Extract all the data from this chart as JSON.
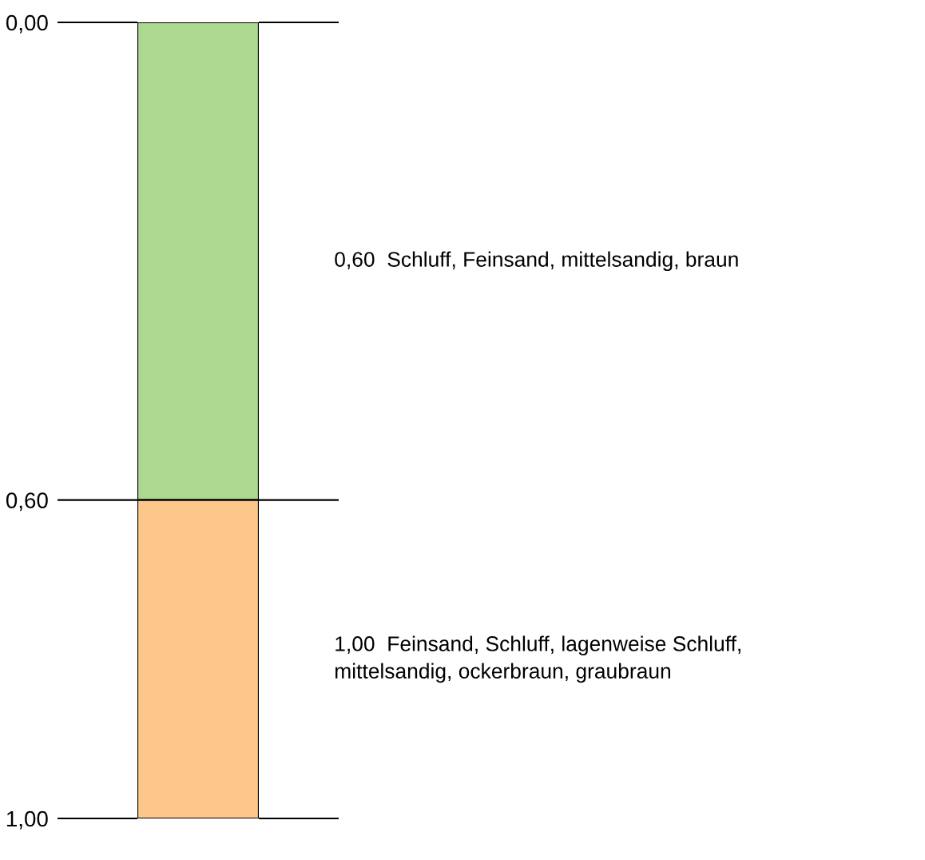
{
  "chart_data": {
    "type": "bar",
    "stacked": true,
    "categories": [
      null
    ],
    "series": [
      {
        "name": "0,60  Schluff, Feinsand, mittelsandig, braun",
        "color": "#acd98f",
        "values": [
          0.6
        ]
      },
      {
        "name": "1,00  Feinsand, Schluff, lagenweise Schluff,\nmittelsandig, ockerbraun, graubraun",
        "color": "#fdc68a",
        "values": [
          0.4
        ]
      }
    ],
    "ylim": [
      1.0,
      0.0
    ],
    "yticks": [
      {
        "value": 0.0,
        "label": "0,00"
      },
      {
        "value": 0.6,
        "label": "0,60"
      },
      {
        "value": 1.0,
        "label": "1,00"
      }
    ],
    "grid": false,
    "legend": false
  }
}
